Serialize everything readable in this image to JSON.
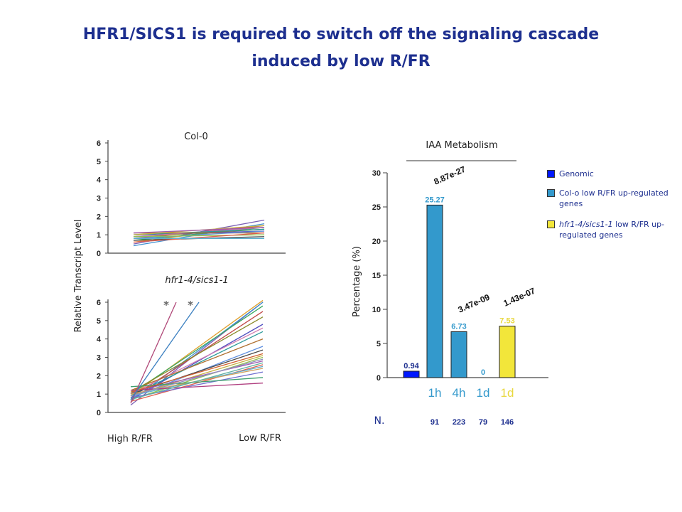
{
  "title_line1": "HFR1/SICS1 is required to switch off the signaling cascade",
  "title_line2": "induced by low R/FR",
  "colors": {
    "title": "#1d2f8f",
    "genomic": "#0018ff",
    "colo": "#3399cc",
    "hfr1": "#f2e63a"
  },
  "chart_data": [
    {
      "type": "line",
      "title": "Col-0",
      "ylabel": "Relative Transcript Level",
      "ylim": [
        0,
        6
      ],
      "yticks": [
        "0",
        "1",
        "2",
        "3",
        "4",
        "5",
        "6"
      ],
      "categories": [
        "High R/FR",
        "Low R/FR"
      ],
      "series": [
        {
          "values": [
            0.5,
            1.8
          ]
        },
        {
          "values": [
            0.4,
            1.6
          ]
        },
        {
          "values": [
            0.6,
            1.5
          ]
        },
        {
          "values": [
            0.7,
            1.4
          ]
        },
        {
          "values": [
            0.8,
            1.5
          ]
        },
        {
          "values": [
            0.9,
            1.3
          ]
        },
        {
          "values": [
            1.0,
            1.2
          ]
        },
        {
          "values": [
            0.9,
            1.4
          ]
        },
        {
          "values": [
            1.0,
            1.3
          ]
        },
        {
          "values": [
            1.1,
            1.1
          ]
        },
        {
          "values": [
            0.8,
            1.2
          ]
        },
        {
          "values": [
            0.7,
            0.9
          ]
        },
        {
          "values": [
            1.0,
            1.5
          ]
        },
        {
          "values": [
            0.9,
            1.0
          ]
        },
        {
          "values": [
            1.1,
            1.4
          ]
        },
        {
          "values": [
            0.6,
            1.1
          ]
        },
        {
          "values": [
            0.8,
            0.8
          ]
        }
      ]
    },
    {
      "type": "line",
      "title": "hfr1-4/sics1-1",
      "ylabel": "Relative Transcript Level",
      "ylim": [
        0,
        6
      ],
      "yticks": [
        "0",
        "1",
        "2",
        "3",
        "4",
        "5",
        "6"
      ],
      "categories": [
        "High R/FR",
        "Low R/FR"
      ],
      "annotations": [
        "*",
        "*"
      ],
      "series": [
        {
          "values": [
            0.4,
            6.0
          ]
        },
        {
          "values": [
            0.6,
            6.0
          ]
        },
        {
          "values": [
            0.9,
            6.1
          ]
        },
        {
          "values": [
            1.0,
            5.8
          ]
        },
        {
          "values": [
            0.8,
            5.5
          ]
        },
        {
          "values": [
            1.1,
            5.2
          ]
        },
        {
          "values": [
            0.7,
            4.8
          ]
        },
        {
          "values": [
            1.0,
            4.6
          ]
        },
        {
          "values": [
            0.9,
            4.4
          ]
        },
        {
          "values": [
            1.2,
            4.0
          ]
        },
        {
          "values": [
            0.8,
            3.6
          ]
        },
        {
          "values": [
            1.0,
            3.4
          ]
        },
        {
          "values": [
            0.9,
            3.1
          ]
        },
        {
          "values": [
            0.7,
            3.0
          ]
        },
        {
          "values": [
            1.1,
            2.8
          ]
        },
        {
          "values": [
            0.6,
            2.6
          ]
        },
        {
          "values": [
            0.9,
            2.5
          ]
        },
        {
          "values": [
            1.0,
            2.4
          ]
        },
        {
          "values": [
            0.8,
            2.2
          ]
        },
        {
          "values": [
            1.4,
            1.9
          ]
        },
        {
          "values": [
            1.2,
            1.6
          ]
        },
        {
          "values": [
            0.9,
            2.9
          ]
        },
        {
          "values": [
            1.1,
            3.2
          ]
        },
        {
          "values": [
            0.7,
            2.7
          ]
        }
      ],
      "steep_series": [
        {
          "values": [
            0.5,
            6.0
          ]
        },
        {
          "values": [
            0.7,
            6.0
          ]
        }
      ]
    },
    {
      "type": "bar",
      "title": "IAA Metabolism",
      "ylabel": "Percentage (%)",
      "ylim": [
        0,
        30
      ],
      "yticks": [
        "0",
        "5",
        "10",
        "15",
        "20",
        "25",
        "30"
      ],
      "categories": [
        "",
        "1h",
        "4h",
        "1d",
        "1d"
      ],
      "values": [
        0.94,
        25.27,
        6.73,
        0,
        7.53
      ],
      "data_labels": [
        "0.94",
        "25.27",
        "6.73",
        "0",
        "7.53"
      ],
      "pvalues": [
        "8.87e-27",
        "3.47e-09",
        "1.43e-07"
      ],
      "n_label": "N.",
      "n_values": [
        "91",
        "223",
        "79",
        "146"
      ],
      "legend": [
        {
          "label": "Genomic",
          "color": "#0018ff"
        },
        {
          "label": "Col-o low R/FR up-regulated genes",
          "color": "#3399cc"
        },
        {
          "label_italic": "hfr1-4/sics1-1",
          "label": " low R/FR up-regulated genes",
          "color": "#f2e63a"
        }
      ]
    }
  ]
}
